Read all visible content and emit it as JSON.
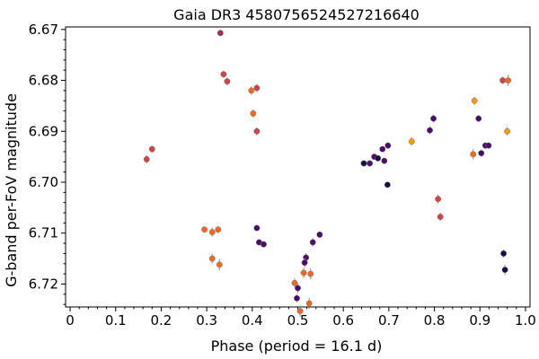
{
  "chart_data": {
    "type": "scatter",
    "title": "Gaia DR3 4580756524527216640",
    "xlabel": "Phase (period = 16.1 d)",
    "ylabel": "G-band per-FoV magnitude",
    "xlim": [
      -0.01,
      1.01
    ],
    "ylim": [
      6.7245,
      6.6695
    ],
    "y_inverted": true,
    "x_ticks": [
      "0",
      "0.1",
      "0.2",
      "0.3",
      "0.4",
      "0.5",
      "0.6",
      "0.7",
      "0.8",
      "0.9",
      "1.0"
    ],
    "y_ticks": [
      "6.67",
      "6.68",
      "6.69",
      "6.70",
      "6.71",
      "6.72"
    ],
    "grid": false,
    "colormap": [
      "#1b0c41",
      "#4a0c6b",
      "#781c6d",
      "#a52c60",
      "#cf4446",
      "#ed6925",
      "#fb9b06",
      "#f7d13d"
    ],
    "points": [
      {
        "x": 0.168,
        "y": 6.6955,
        "err": 0.0008,
        "c": "#cf4446"
      },
      {
        "x": 0.18,
        "y": 6.6935,
        "err": 0.0007,
        "c": "#cf4446"
      },
      {
        "x": 0.33,
        "y": 6.6707,
        "err": 0.0006,
        "c": "#a52c60"
      },
      {
        "x": 0.337,
        "y": 6.6788,
        "err": 0.0007,
        "c": "#cf4446"
      },
      {
        "x": 0.345,
        "y": 6.6802,
        "err": 0.0008,
        "c": "#cf4446"
      },
      {
        "x": 0.398,
        "y": 6.682,
        "err": 0.0008,
        "c": "#ed6925"
      },
      {
        "x": 0.41,
        "y": 6.6815,
        "err": 0.0008,
        "c": "#cf4446"
      },
      {
        "x": 0.402,
        "y": 6.6865,
        "err": 0.0008,
        "c": "#ed6925"
      },
      {
        "x": 0.41,
        "y": 6.69,
        "err": 0.0008,
        "c": "#cf4446"
      },
      {
        "x": 0.295,
        "y": 6.7093,
        "err": 0.0006,
        "c": "#ed6925"
      },
      {
        "x": 0.312,
        "y": 6.7098,
        "err": 0.0009,
        "c": "#ed6925"
      },
      {
        "x": 0.325,
        "y": 6.7093,
        "err": 0.0007,
        "c": "#ed6925"
      },
      {
        "x": 0.312,
        "y": 6.715,
        "err": 0.0009,
        "c": "#ed6925"
      },
      {
        "x": 0.328,
        "y": 6.7162,
        "err": 0.0011,
        "c": "#ed6925"
      },
      {
        "x": 0.41,
        "y": 6.709,
        "err": 0.0006,
        "c": "#4a0c6b"
      },
      {
        "x": 0.415,
        "y": 6.7118,
        "err": 0.0006,
        "c": "#4a0c6b"
      },
      {
        "x": 0.425,
        "y": 6.7122,
        "err": 0.0006,
        "c": "#4a0c6b"
      },
      {
        "x": 0.533,
        "y": 6.7118,
        "err": 0.0008,
        "c": "#4a0c6b"
      },
      {
        "x": 0.548,
        "y": 6.7103,
        "err": 0.0006,
        "c": "#4a0c6b"
      },
      {
        "x": 0.518,
        "y": 6.7148,
        "err": 0.0009,
        "c": "#4a0c6b"
      },
      {
        "x": 0.515,
        "y": 6.7158,
        "err": 0.0009,
        "c": "#4a0c6b"
      },
      {
        "x": 0.513,
        "y": 6.7178,
        "err": 0.001,
        "c": "#ed6925"
      },
      {
        "x": 0.528,
        "y": 6.718,
        "err": 0.0011,
        "c": "#ed6925"
      },
      {
        "x": 0.493,
        "y": 6.7198,
        "err": 0.0009,
        "c": "#ed6925"
      },
      {
        "x": 0.5,
        "y": 6.7208,
        "err": 0.001,
        "c": "#4a0c6b"
      },
      {
        "x": 0.498,
        "y": 6.7228,
        "err": 0.0008,
        "c": "#4a0c6b"
      },
      {
        "x": 0.525,
        "y": 6.7238,
        "err": 0.0011,
        "c": "#ed6925"
      },
      {
        "x": 0.505,
        "y": 6.7253,
        "err": 0.0011,
        "c": "#ed6925"
      },
      {
        "x": 0.645,
        "y": 6.6963,
        "err": 0.0006,
        "c": "#1b0c41"
      },
      {
        "x": 0.658,
        "y": 6.6963,
        "err": 0.0006,
        "c": "#4a0c6b"
      },
      {
        "x": 0.668,
        "y": 6.695,
        "err": 0.0006,
        "c": "#4a0c6b"
      },
      {
        "x": 0.676,
        "y": 6.6953,
        "err": 0.0006,
        "c": "#1b0c41"
      },
      {
        "x": 0.686,
        "y": 6.6935,
        "err": 0.0006,
        "c": "#4a0c6b"
      },
      {
        "x": 0.69,
        "y": 6.6958,
        "err": 0.0006,
        "c": "#4a0c6b"
      },
      {
        "x": 0.698,
        "y": 6.6928,
        "err": 0.0007,
        "c": "#4a0c6b"
      },
      {
        "x": 0.697,
        "y": 6.7005,
        "err": 0.0006,
        "c": "#1b0c41"
      },
      {
        "x": 0.75,
        "y": 6.692,
        "err": 0.0008,
        "c": "#fb9b06"
      },
      {
        "x": 0.79,
        "y": 6.6898,
        "err": 0.0008,
        "c": "#4a0c6b"
      },
      {
        "x": 0.798,
        "y": 6.6875,
        "err": 0.0008,
        "c": "#4a0c6b"
      },
      {
        "x": 0.808,
        "y": 6.7033,
        "err": 0.0009,
        "c": "#cf4446"
      },
      {
        "x": 0.813,
        "y": 6.7068,
        "err": 0.0008,
        "c": "#cf4446"
      },
      {
        "x": 0.888,
        "y": 6.684,
        "err": 0.0008,
        "c": "#fb9b06"
      },
      {
        "x": 0.885,
        "y": 6.6945,
        "err": 0.001,
        "c": "#ed6925"
      },
      {
        "x": 0.897,
        "y": 6.6875,
        "err": 0.0007,
        "c": "#4a0c6b"
      },
      {
        "x": 0.903,
        "y": 6.6943,
        "err": 0.0007,
        "c": "#4a0c6b"
      },
      {
        "x": 0.912,
        "y": 6.6928,
        "err": 0.0006,
        "c": "#4a0c6b"
      },
      {
        "x": 0.919,
        "y": 6.6928,
        "err": 0.0006,
        "c": "#4a0c6b"
      },
      {
        "x": 0.95,
        "y": 6.68,
        "err": 0.0007,
        "c": "#cf4446"
      },
      {
        "x": 0.962,
        "y": 6.68,
        "err": 0.0011,
        "c": "#ed6925"
      },
      {
        "x": 0.96,
        "y": 6.69,
        "err": 0.0008,
        "c": "#fb9b06"
      },
      {
        "x": 0.952,
        "y": 6.714,
        "err": 0.0008,
        "c": "#1b0c41"
      },
      {
        "x": 0.955,
        "y": 6.7172,
        "err": 0.001,
        "c": "#1b0c41"
      }
    ]
  }
}
